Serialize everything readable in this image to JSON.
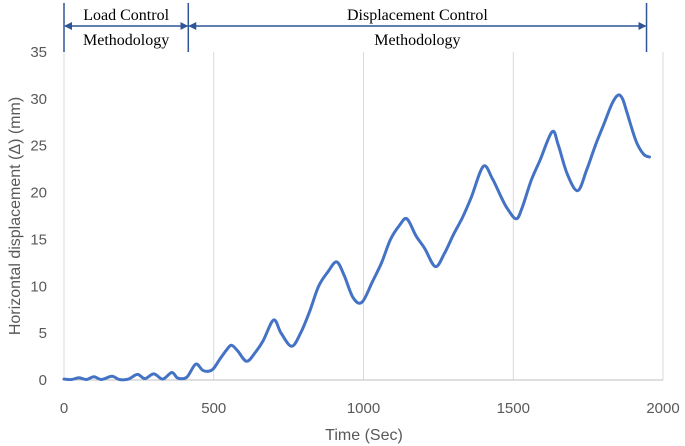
{
  "chart_data": {
    "type": "line",
    "title": "",
    "xlabel": "Time (Sec)",
    "ylabel": "Horizontal displacement (Δ) (mm)",
    "xlim": [
      0,
      2000
    ],
    "ylim": [
      0,
      35
    ],
    "xticks": [
      0,
      500,
      1000,
      1500,
      2000
    ],
    "yticks": [
      0,
      5,
      10,
      15,
      20,
      25,
      30,
      35
    ],
    "grid": "vertical",
    "line_color": "#4472c4",
    "series": [
      {
        "x": [
          0,
          25,
          50,
          75,
          100,
          125,
          160,
          185,
          215,
          245,
          270,
          300,
          330,
          360,
          380,
          410,
          440,
          465,
          495,
          520,
          545,
          560,
          580,
          610,
          640,
          665,
          700,
          725,
          760,
          790,
          820,
          850,
          880,
          910,
          935,
          965,
          995,
          1030,
          1060,
          1090,
          1120,
          1145,
          1175,
          1205,
          1240,
          1270,
          1300,
          1330,
          1360,
          1400,
          1430,
          1460,
          1480,
          1510,
          1530,
          1560,
          1590,
          1630,
          1650,
          1680,
          1715,
          1745,
          1775,
          1805,
          1830,
          1850,
          1865,
          1880,
          1910,
          1935,
          1955
        ],
        "values": [
          0.1,
          0.05,
          0.25,
          0.05,
          0.35,
          0.05,
          0.4,
          0.05,
          0.1,
          0.6,
          0.15,
          0.65,
          0.1,
          0.8,
          0.2,
          0.3,
          1.7,
          1.0,
          1.1,
          2.2,
          3.3,
          3.7,
          3.1,
          2.0,
          3.0,
          4.2,
          6.4,
          5.0,
          3.6,
          5.0,
          7.3,
          10.0,
          11.5,
          12.6,
          11.2,
          8.8,
          8.3,
          10.5,
          12.5,
          15.0,
          16.5,
          17.2,
          15.4,
          14.0,
          12.1,
          13.5,
          15.5,
          17.3,
          19.5,
          22.8,
          21.5,
          19.5,
          18.3,
          17.2,
          18.4,
          21.3,
          23.5,
          26.5,
          25.1,
          22.0,
          20.2,
          22.4,
          25.1,
          27.5,
          29.5,
          30.4,
          30.0,
          28.5,
          25.5,
          24.1,
          23.8
        ]
      }
    ],
    "annotations": {
      "load_line1": "Load Control",
      "load_line2": "Methodology",
      "disp_line1": "Displacement Control",
      "disp_line2": "Methodology",
      "load_start": 0,
      "boundary": 415,
      "disp_end": 1945
    }
  }
}
